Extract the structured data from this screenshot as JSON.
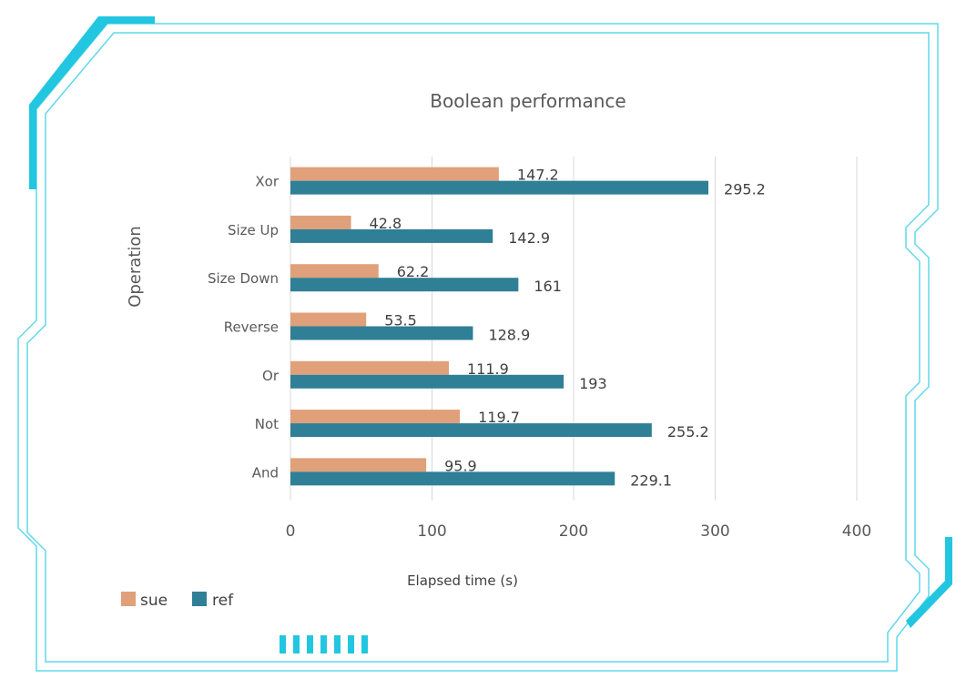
{
  "chart_data": {
    "type": "bar",
    "orientation": "horizontal",
    "title": "Boolean performance",
    "xlabel": "Elapsed time (s)",
    "ylabel": "Operation",
    "categories": [
      "Xor",
      "Size Up",
      "Size Down",
      "Reverse",
      "Or",
      "Not",
      "And"
    ],
    "series": [
      {
        "name": "sue",
        "values": [
          147.2,
          42.8,
          62.2,
          53.5,
          111.9,
          119.7,
          95.9
        ],
        "labels": [
          "147.2",
          "42.8",
          "62.2",
          "53.5",
          "111.9",
          "119.7",
          "95.9"
        ],
        "color": "#e0a07a"
      },
      {
        "name": "ref",
        "values": [
          295.2,
          142.9,
          161,
          128.9,
          193,
          255.2,
          229.1
        ],
        "labels": [
          "295.2",
          "142.9",
          "161",
          "128.9",
          "193",
          "255.2",
          "229.1"
        ],
        "color": "#2f7f96"
      }
    ],
    "xlim": [
      0,
      400
    ],
    "xticks": [
      0,
      100,
      200,
      300,
      400
    ],
    "xtick_labels": [
      "0",
      "100",
      "200",
      "300",
      "400"
    ],
    "grid": true,
    "legend_position": "bottom-left"
  },
  "colors": {
    "frame": "#5fd8ec",
    "frame_accent": "#22c6e0",
    "grid": "#d9d9d9",
    "text": "#595959"
  }
}
